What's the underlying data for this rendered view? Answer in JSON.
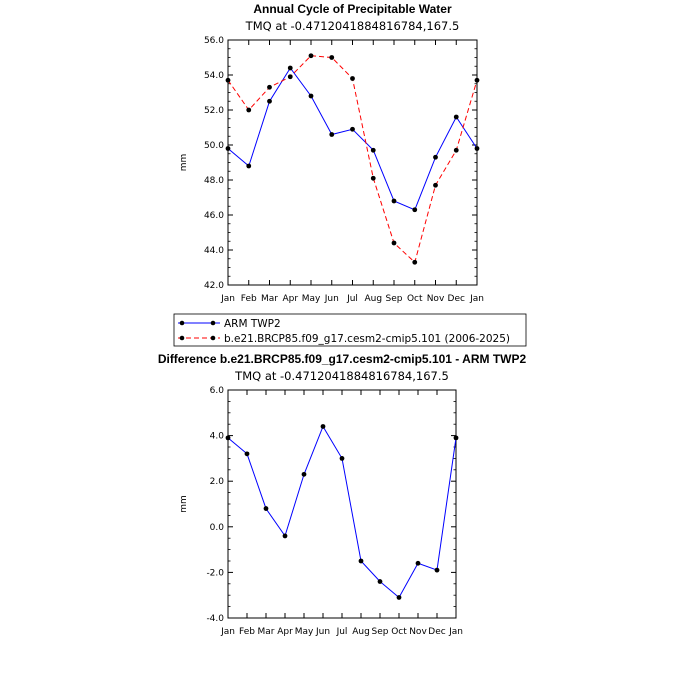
{
  "chart_data": [
    {
      "type": "line",
      "title": "Annual Cycle of Precipitable Water",
      "subtitle": "TMQ at -0.4712041884816784,167.5",
      "ylabel": "mm",
      "xlabel": "",
      "categories": [
        "Jan",
        "Feb",
        "Mar",
        "Apr",
        "May",
        "Jun",
        "Jul",
        "Aug",
        "Sep",
        "Oct",
        "Nov",
        "Dec",
        "Jan"
      ],
      "ylim": [
        42.0,
        56.0
      ],
      "yticks": [
        "42.0",
        "44.0",
        "46.0",
        "48.0",
        "50.0",
        "52.0",
        "54.0",
        "56.0"
      ],
      "grid": false,
      "legend_position": "below",
      "series": [
        {
          "name": "ARM TWP2",
          "color": "#0000ff",
          "dash": "solid",
          "values": [
            49.8,
            48.8,
            52.5,
            54.4,
            52.8,
            50.6,
            50.9,
            49.7,
            46.8,
            46.3,
            49.3,
            51.6,
            49.8
          ]
        },
        {
          "name": "b.e21.BRCP85.f09_g17.cesm2-cmip5.101 (2006-2025)",
          "color": "#ff0000",
          "dash": "dashed",
          "values": [
            53.7,
            52.0,
            53.3,
            53.9,
            55.1,
            55.0,
            53.8,
            48.1,
            44.4,
            43.3,
            47.7,
            49.7,
            53.7
          ]
        }
      ]
    },
    {
      "type": "line",
      "title": "Difference b.e21.BRCP85.f09_g17.cesm2-cmip5.101 - ARM TWP2",
      "subtitle": "TMQ at -0.4712041884816784,167.5",
      "ylabel": "mm",
      "xlabel": "",
      "categories": [
        "Jan",
        "Feb",
        "Mar",
        "Apr",
        "May",
        "Jun",
        "Jul",
        "Aug",
        "Sep",
        "Oct",
        "Nov",
        "Dec",
        "Jan"
      ],
      "ylim": [
        -4.0,
        6.0
      ],
      "yticks": [
        "-4.0",
        "-2.0",
        "0.0",
        "2.0",
        "4.0",
        "6.0"
      ],
      "grid": false,
      "series": [
        {
          "color": "#0000ff",
          "dash": "solid",
          "values": [
            3.9,
            3.2,
            0.8,
            -0.4,
            2.3,
            4.4,
            3.0,
            -1.5,
            -2.4,
            -3.1,
            -1.6,
            -1.9,
            3.9
          ]
        }
      ]
    }
  ]
}
